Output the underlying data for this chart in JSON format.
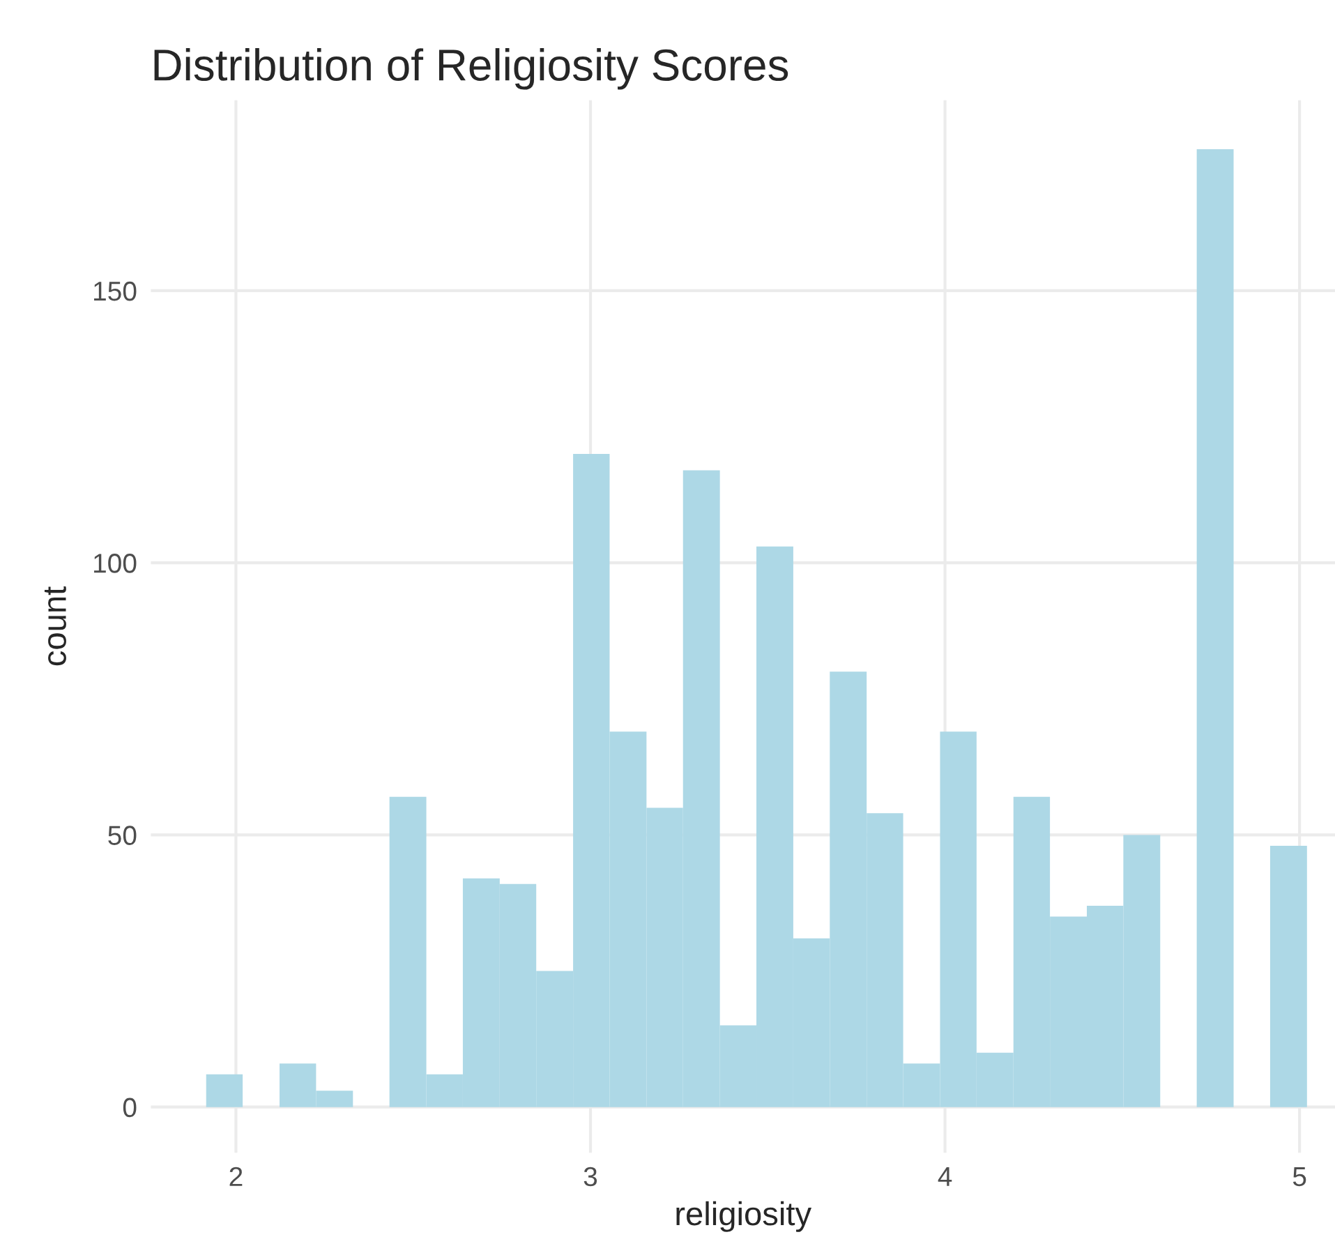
{
  "chart_data": {
    "type": "histogram",
    "title": "Distribution of Religiosity Scores",
    "xlabel": "religiosity",
    "ylabel": "count",
    "bins": [
      1.916,
      2.019,
      2.123,
      2.226,
      2.33,
      2.433,
      2.537,
      2.64,
      2.744,
      2.847,
      2.951,
      3.054,
      3.158,
      3.261,
      3.365,
      3.468,
      3.572,
      3.675,
      3.779,
      3.882,
      3.986,
      4.089,
      4.193,
      4.296,
      4.4,
      4.503,
      4.607,
      4.71,
      4.814,
      4.917,
      5.021
    ],
    "values": [
      6,
      0,
      8,
      3,
      0,
      57,
      6,
      42,
      41,
      25,
      120,
      69,
      55,
      117,
      15,
      103,
      31,
      80,
      54,
      8,
      69,
      10,
      57,
      35,
      37,
      50,
      0,
      176,
      0,
      48
    ],
    "color": "#add8e6",
    "xlim": [
      1.76,
      5.1
    ],
    "ylim": [
      -8.4,
      185
    ],
    "xticks": [
      2,
      3,
      4,
      5
    ],
    "yticks": [
      0,
      50,
      100,
      150
    ],
    "grid": true
  }
}
